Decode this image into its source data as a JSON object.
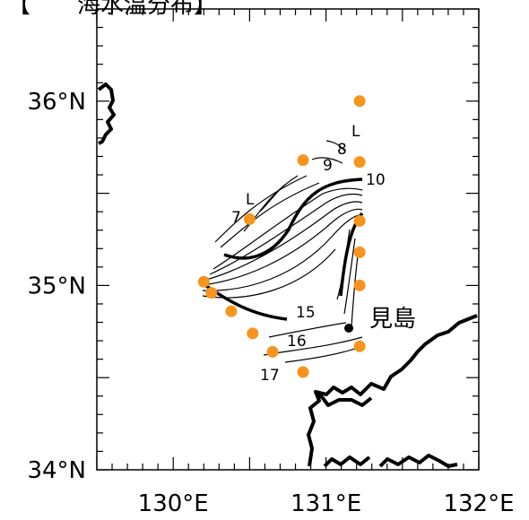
{
  "title_fragment": "【　　海水温分布】",
  "axes": {
    "lon_range": [
      129.5,
      132.0
    ],
    "lat_range": [
      34.0,
      36.5
    ],
    "x_ticks": [
      {
        "value": 130,
        "label": "130°E"
      },
      {
        "value": 131,
        "label": "131°E"
      },
      {
        "value": 132,
        "label": "132°E"
      }
    ],
    "y_ticks": [
      {
        "value": 34,
        "label": "34°N"
      },
      {
        "value": 35,
        "label": "35°N"
      },
      {
        "value": 36,
        "label": "36°N"
      }
    ]
  },
  "contour_labels": [
    "7",
    "8",
    "9",
    "10",
    "15",
    "16",
    "17"
  ],
  "low_markers": [
    "L",
    "L"
  ],
  "place": {
    "name": "見島"
  },
  "stations": {
    "color": "#f7941d",
    "points": [
      [
        131.22,
        36.0
      ],
      [
        131.22,
        35.67
      ],
      [
        130.85,
        35.68
      ],
      [
        130.5,
        35.36
      ],
      [
        131.22,
        35.35
      ],
      [
        131.22,
        35.18
      ],
      [
        131.22,
        35.0
      ],
      [
        130.2,
        35.02
      ],
      [
        130.25,
        34.96
      ],
      [
        130.38,
        34.86
      ],
      [
        130.52,
        34.74
      ],
      [
        130.65,
        34.64
      ],
      [
        130.85,
        34.53
      ],
      [
        131.22,
        34.67
      ]
    ]
  }
}
